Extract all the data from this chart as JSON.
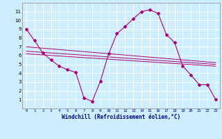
{
  "xlabel": "Windchill (Refroidissement éolien,°C)",
  "bg_color": "#cceeff",
  "line_color": "#aa0077",
  "grid_color": "#ffffff",
  "xlim": [
    -0.5,
    23.5
  ],
  "ylim": [
    0,
    12
  ],
  "xticks": [
    0,
    1,
    2,
    3,
    4,
    5,
    6,
    7,
    8,
    9,
    10,
    11,
    12,
    13,
    14,
    15,
    16,
    17,
    18,
    19,
    20,
    21,
    22,
    23
  ],
  "yticks": [
    1,
    2,
    3,
    4,
    5,
    6,
    7,
    8,
    9,
    10,
    11
  ],
  "line1": {
    "x": [
      0,
      1,
      2,
      3,
      4,
      5,
      6,
      7,
      8,
      9,
      10,
      11,
      12,
      13,
      14,
      15,
      16,
      17,
      18,
      19,
      20,
      21,
      22,
      23
    ],
    "y": [
      9,
      7.7,
      6.3,
      5.5,
      4.8,
      4.4,
      4.1,
      1.2,
      0.8,
      3.1,
      6.2,
      8.5,
      9.3,
      10.2,
      11.0,
      11.2,
      10.8,
      8.4,
      7.5,
      4.8,
      3.8,
      2.7,
      2.7,
      1.0
    ]
  },
  "line2": {
    "x": [
      0,
      23
    ],
    "y": [
      7.0,
      5.2
    ]
  },
  "line3": {
    "x": [
      0,
      23
    ],
    "y": [
      6.5,
      5.0
    ]
  },
  "line4": {
    "x": [
      0,
      23
    ],
    "y": [
      6.2,
      4.8
    ]
  }
}
